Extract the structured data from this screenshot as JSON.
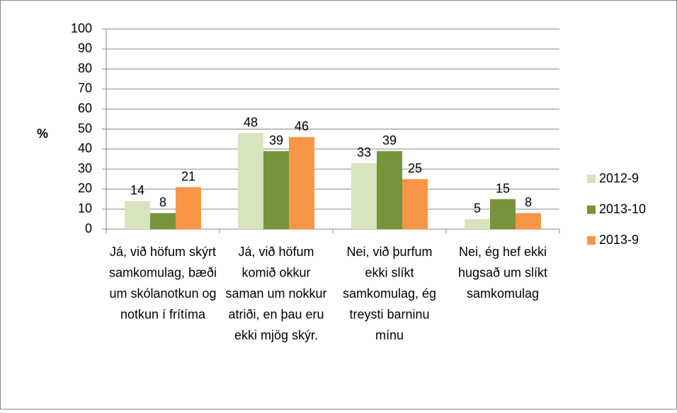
{
  "chart_data": {
    "type": "bar",
    "y_label": "%",
    "categories": [
      "Já, við höfum skýrt samkomulag, bæði um skólanotkun og notkun í frítíma",
      "Já, við höfum komið okkur saman um nokkur atriði, en þau eru ekki mjög skýr.",
      "Nei, við þurfum ekki slíkt samkomulag, ég treysti barninu mínu",
      "Nei, ég hef ekki hugsað um slíkt samkomulag"
    ],
    "series": [
      {
        "name": "2012-9",
        "color": "#d7e4bd",
        "values": [
          14,
          48,
          33,
          5
        ]
      },
      {
        "name": "2013-10",
        "color": "#77933c",
        "values": [
          8,
          39,
          39,
          15
        ]
      },
      {
        "name": "2013-9",
        "color": "#f79646",
        "values": [
          21,
          46,
          25,
          8
        ]
      }
    ],
    "ylim": [
      0,
      100
    ],
    "yticks": [
      0,
      10,
      20,
      30,
      40,
      50,
      60,
      70,
      80,
      90,
      100
    ],
    "grid": true,
    "legend": "right"
  }
}
